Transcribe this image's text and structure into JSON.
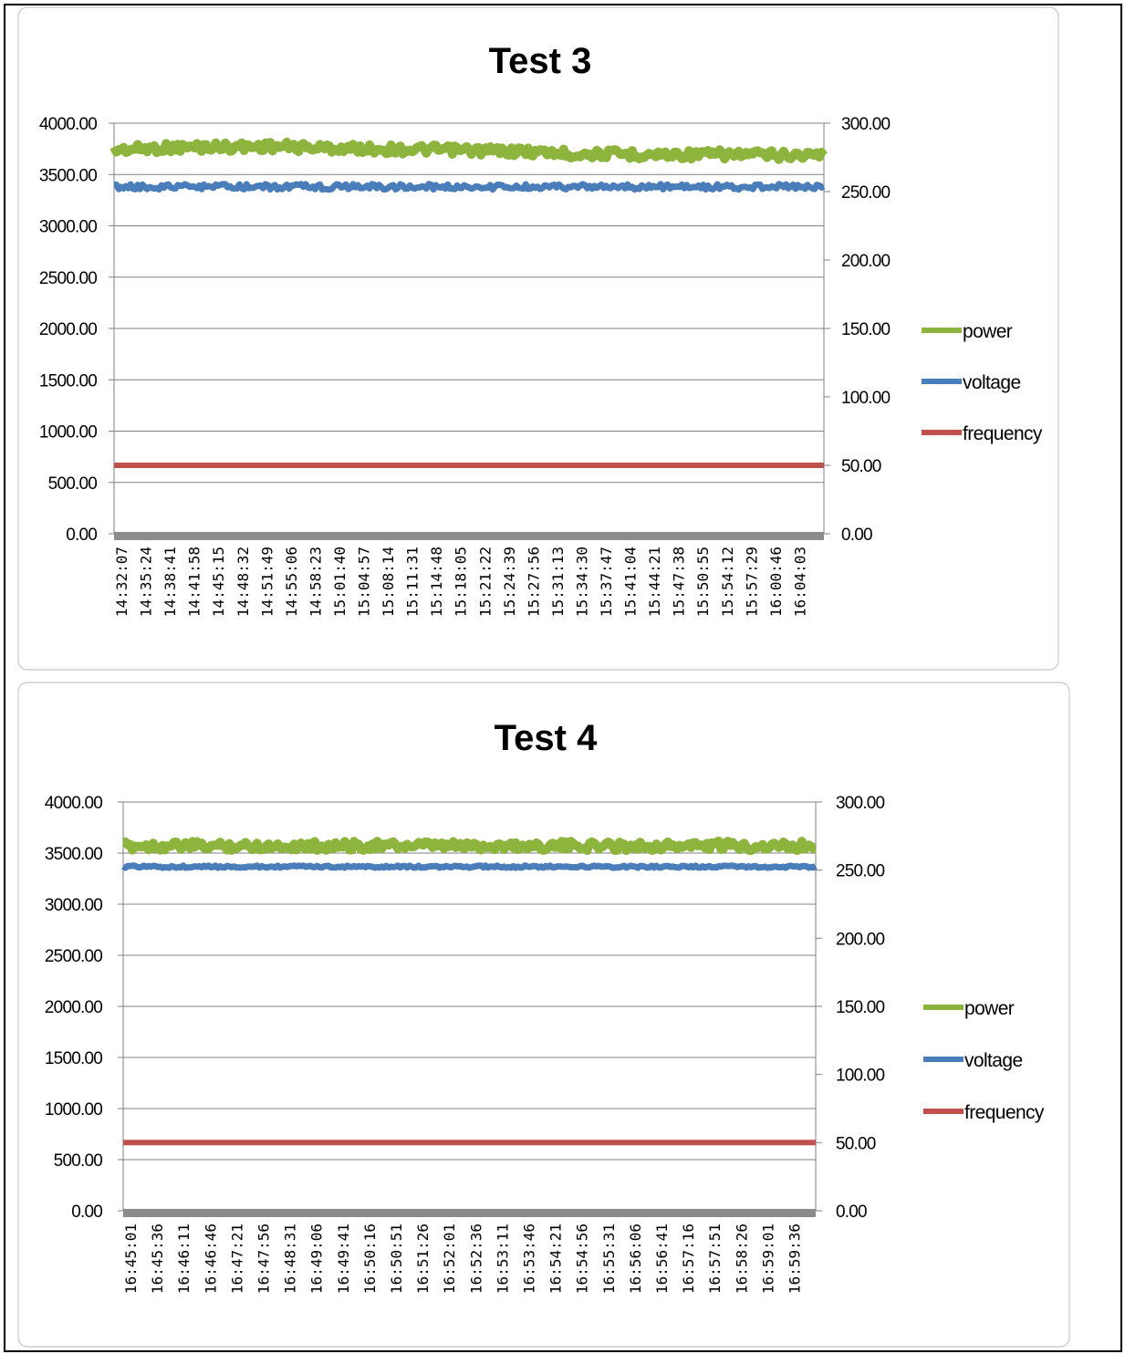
{
  "colors": {
    "power": "#8db53d",
    "voltage": "#4a7ebb",
    "frequency": "#c0504d",
    "baseline": "#8c8c8c"
  },
  "chart_data": [
    {
      "type": "line",
      "title": "Test 3",
      "legend_placement": "right",
      "grid": true,
      "y_left": {
        "ylim": [
          0,
          4000
        ],
        "ticks": [
          "0.00",
          "500.00",
          "1000.00",
          "1500.00",
          "2000.00",
          "2500.00",
          "3000.00",
          "3500.00",
          "4000.00"
        ]
      },
      "y_right": {
        "ylim": [
          0,
          300
        ],
        "ticks": [
          "0.00",
          "50.00",
          "100.00",
          "150.00",
          "200.00",
          "250.00",
          "300.00"
        ]
      },
      "x_ticks": [
        "14:32:07",
        "14:35:24",
        "14:38:41",
        "14:41:58",
        "14:45:15",
        "14:48:32",
        "14:51:49",
        "14:55:06",
        "14:58:23",
        "15:01:40",
        "15:04:57",
        "15:08:14",
        "15:11:31",
        "15:14:48",
        "15:18:05",
        "15:21:22",
        "15:24:39",
        "15:27:56",
        "15:31:13",
        "15:34:30",
        "15:37:47",
        "15:41:04",
        "15:44:21",
        "15:47:38",
        "15:50:55",
        "15:54:12",
        "15:57:29",
        "16:00:46",
        "16:04:03"
      ],
      "series": [
        {
          "name": "power",
          "axis": "left",
          "color": "#8db53d",
          "values": [
            3740,
            3750,
            3760,
            3765,
            3770,
            3770,
            3775,
            3770,
            3760,
            3755,
            3750,
            3745,
            3745,
            3740,
            3735,
            3730,
            3725,
            3715,
            3700,
            3700,
            3700,
            3695,
            3695,
            3695,
            3695,
            3695,
            3690,
            3690,
            3690
          ]
        },
        {
          "name": "voltage",
          "axis": "right",
          "color": "#4a7ebb",
          "values": [
            253.5,
            253.5,
            253.5,
            253.5,
            253.5,
            253.5,
            253.5,
            253.5,
            253.5,
            253.5,
            253.5,
            253.5,
            253.5,
            253.5,
            253.5,
            253.5,
            253.5,
            253.5,
            253.5,
            253.5,
            253.5,
            253.5,
            253.5,
            253.5,
            253.5,
            253.5,
            253.5,
            253.5,
            253.5
          ]
        },
        {
          "name": "frequency",
          "axis": "right",
          "color": "#c0504d",
          "values": [
            50,
            50,
            50,
            50,
            50,
            50,
            50,
            50,
            50,
            50,
            50,
            50,
            50,
            50,
            50,
            50,
            50,
            50,
            50,
            50,
            50,
            50,
            50,
            50,
            50,
            50,
            50,
            50,
            50
          ]
        }
      ]
    },
    {
      "type": "line",
      "title": "Test 4",
      "legend_placement": "right",
      "grid": true,
      "y_left": {
        "ylim": [
          0,
          4000
        ],
        "ticks": [
          "0.00",
          "500.00",
          "1000.00",
          "1500.00",
          "2000.00",
          "2500.00",
          "3000.00",
          "3500.00",
          "4000.00"
        ]
      },
      "y_right": {
        "ylim": [
          0,
          300
        ],
        "ticks": [
          "0.00",
          "50.00",
          "100.00",
          "150.00",
          "200.00",
          "250.00",
          "300.00"
        ]
      },
      "x_ticks": [
        "16:45:01",
        "16:45:36",
        "16:46:11",
        "16:46:46",
        "16:47:21",
        "16:47:56",
        "16:48:31",
        "16:49:06",
        "16:49:41",
        "16:50:16",
        "16:50:51",
        "16:51:26",
        "16:52:01",
        "16:52:36",
        "16:53:11",
        "16:53:46",
        "16:54:21",
        "16:54:56",
        "16:55:31",
        "16:56:06",
        "16:56:41",
        "16:57:16",
        "16:57:51",
        "16:58:26",
        "16:59:01",
        "16:59:36"
      ],
      "series": [
        {
          "name": "power",
          "axis": "left",
          "color": "#8db53d",
          "values": [
            3570,
            3570,
            3570,
            3570,
            3570,
            3570,
            3570,
            3570,
            3570,
            3575,
            3570,
            3570,
            3570,
            3570,
            3570,
            3570,
            3570,
            3570,
            3570,
            3570,
            3570,
            3575,
            3570,
            3570,
            3570,
            3570
          ]
        },
        {
          "name": "voltage",
          "axis": "right",
          "color": "#4a7ebb",
          "values": [
            252.5,
            252.5,
            252.5,
            252.5,
            252.5,
            252.5,
            252.5,
            252.5,
            252.5,
            252.5,
            252.5,
            252.5,
            252.5,
            252.5,
            252.5,
            252.5,
            252.5,
            252.5,
            252.5,
            252.5,
            252.5,
            252.5,
            252.5,
            252.5,
            252.5,
            252.5
          ]
        },
        {
          "name": "frequency",
          "axis": "right",
          "color": "#c0504d",
          "values": [
            50,
            50,
            50,
            50,
            50,
            50,
            50,
            50,
            50,
            50,
            50,
            50,
            50,
            50,
            50,
            50,
            50,
            50,
            50,
            50,
            50,
            50,
            50,
            50,
            50,
            50
          ]
        }
      ]
    }
  ]
}
